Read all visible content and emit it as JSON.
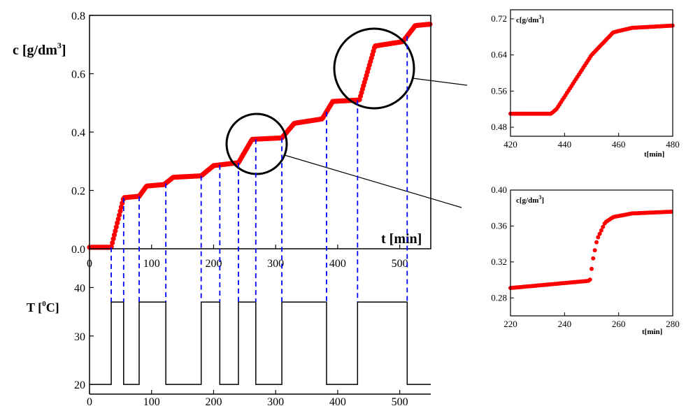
{
  "chart_data": [
    {
      "id": "main-concentration",
      "type": "scatter",
      "ylabel": "c [g/dm",
      "ylabel_sup": "3",
      "ylabel_end": "]",
      "xlabel": "t [min]",
      "xlim": [
        0,
        550
      ],
      "ylim": [
        0,
        0.8
      ],
      "xticks": [
        0,
        100,
        200,
        300,
        400,
        500
      ],
      "yticks": [
        "0.0",
        "0.2",
        "0.4",
        "0.6",
        "0.8"
      ],
      "marker_color": "#ff0000",
      "steps": [
        {
          "t": 0,
          "c": 0.005
        },
        {
          "t": 35,
          "c": 0.005
        },
        {
          "t": 55,
          "c": 0.175
        },
        {
          "t": 80,
          "c": 0.18
        },
        {
          "t": 92,
          "c": 0.215
        },
        {
          "t": 120,
          "c": 0.22
        },
        {
          "t": 135,
          "c": 0.245
        },
        {
          "t": 180,
          "c": 0.25
        },
        {
          "t": 200,
          "c": 0.285
        },
        {
          "t": 240,
          "c": 0.295
        },
        {
          "t": 262,
          "c": 0.375
        },
        {
          "t": 310,
          "c": 0.38
        },
        {
          "t": 330,
          "c": 0.43
        },
        {
          "t": 375,
          "c": 0.445
        },
        {
          "t": 392,
          "c": 0.505
        },
        {
          "t": 435,
          "c": 0.51
        },
        {
          "t": 460,
          "c": 0.695
        },
        {
          "t": 505,
          "c": 0.71
        },
        {
          "t": 525,
          "c": 0.765
        },
        {
          "t": 550,
          "c": 0.77
        }
      ]
    },
    {
      "id": "temperature",
      "type": "line",
      "ylabel": "T [",
      "ylabel_sup": "0",
      "ylabel_end": "C]",
      "xlim": [
        0,
        550
      ],
      "ylim": [
        18,
        48
      ],
      "xticks": [
        0,
        100,
        200,
        300,
        400,
        500
      ],
      "yticks": [
        20,
        30,
        40
      ],
      "line_color": "#000000",
      "pulses": [
        [
          35,
          55
        ],
        [
          80,
          123
        ],
        [
          180,
          210
        ],
        [
          240,
          268
        ],
        [
          310,
          382
        ],
        [
          432,
          512
        ]
      ],
      "low": 20,
      "high": 37
    },
    {
      "id": "inset-top",
      "type": "scatter",
      "ylabel": "c[g/dm",
      "ylabel_sup": "3",
      "ylabel_end": "]",
      "xlabel": "t[min]",
      "xlim": [
        420,
        480
      ],
      "ylim": [
        0.46,
        0.74
      ],
      "xticks": [
        420,
        440,
        460,
        480
      ],
      "yticks": [
        "0.48",
        "0.56",
        "0.64",
        "0.72"
      ],
      "marker_color": "#ff0000",
      "curve": [
        [
          420,
          0.51
        ],
        [
          435,
          0.51
        ],
        [
          437,
          0.52
        ],
        [
          450,
          0.64
        ],
        [
          458,
          0.69
        ],
        [
          465,
          0.7
        ],
        [
          480,
          0.705
        ]
      ]
    },
    {
      "id": "inset-bottom",
      "type": "scatter",
      "ylabel": "c[g/dm",
      "ylabel_sup": "3",
      "ylabel_end": "]",
      "xlabel": "t[min]",
      "xlim": [
        220,
        280
      ],
      "ylim": [
        0.26,
        0.4
      ],
      "xticks": [
        220,
        240,
        260,
        280
      ],
      "yticks": [
        "0.28",
        "0.32",
        "0.36",
        "0.40"
      ],
      "marker_color": "#ff0000",
      "curve": [
        [
          220,
          0.291
        ],
        [
          249,
          0.299
        ],
        [
          249.6,
          0.301
        ],
        [
          250.2,
          0.318
        ],
        [
          252,
          0.345
        ],
        [
          255,
          0.364
        ],
        [
          258,
          0.37
        ],
        [
          265,
          0.374
        ],
        [
          280,
          0.376
        ]
      ]
    }
  ],
  "connector_color": "#0000ff"
}
